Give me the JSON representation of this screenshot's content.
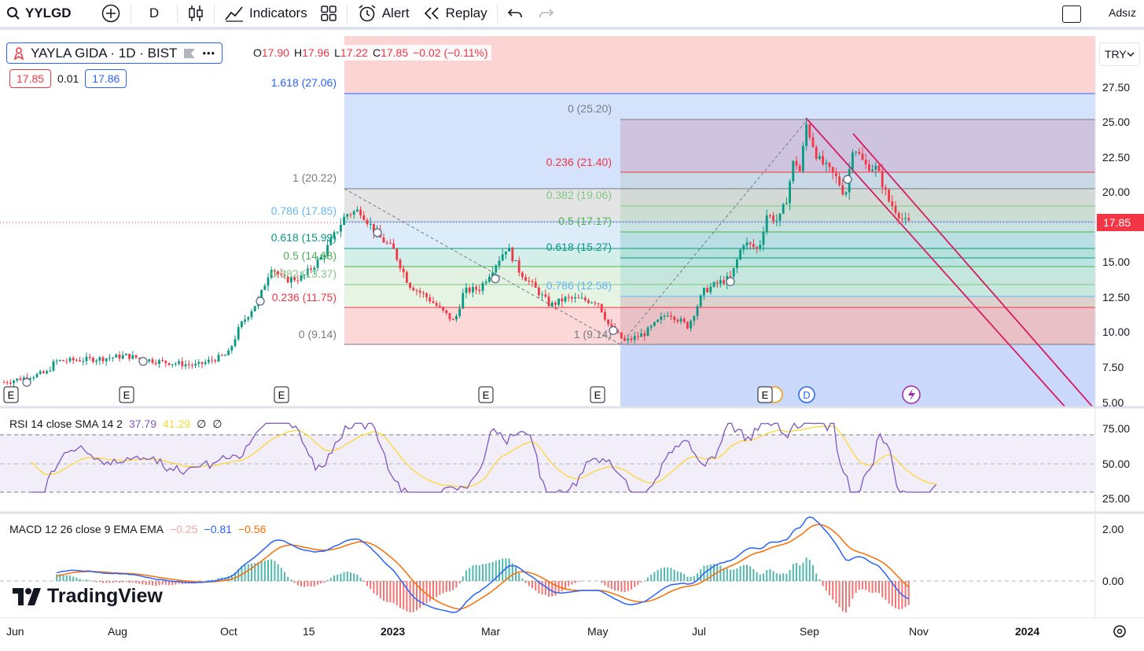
{
  "toolbar": {
    "symbol": "YYLGD",
    "interval": "D",
    "indicators_label": "Indicators",
    "alert_label": "Alert",
    "replay_label": "Replay",
    "user_label": "Adsız"
  },
  "legend": {
    "title": "YAYLA GIDA · 1D · BIST",
    "more": "•••",
    "o_label": "O",
    "o_val": "17.90",
    "h_label": "H",
    "h_val": "17.96",
    "l_label": "L",
    "l_val": "17.22",
    "c_label": "C",
    "c_val": "17.85",
    "change": "−0.02 (−0.11%)",
    "bid": "17.85",
    "spread": "0.01",
    "ask": "17.86"
  },
  "currency": "TRY",
  "price_axis": {
    "ticks": [
      "27.50",
      "25.00",
      "22.50",
      "20.00",
      "15.00",
      "12.50",
      "10.00",
      "7.50",
      "5.00"
    ],
    "last_price": "17.85"
  },
  "time_axis": [
    "Jun",
    "Aug",
    "Oct",
    "15",
    "2023",
    "Mar",
    "May",
    "Jul",
    "Sep",
    "Nov",
    "2024"
  ],
  "fib1": {
    "levels": [
      "1.618 (27.06)",
      "1 (20.22)",
      "0.786 (17.85)",
      "0.618 (15.99)",
      "0.5 (14.68)",
      "0.382 (13.37)",
      "0.236 (11.75)",
      "0 (9.14)"
    ]
  },
  "fib2": {
    "levels": [
      "0 (25.20)",
      "0.236 (21.40)",
      "0.382 (19.06)",
      "0.5 (17.17)",
      "0.618 (15.27)",
      "0.786 (12.58)",
      "1 (9.14)"
    ]
  },
  "events": [
    "E",
    "E",
    "E",
    "E",
    "E",
    "E",
    "D"
  ],
  "rsi": {
    "label": "RSI 14 close SMA 14 2",
    "v1": "37.79",
    "v2": "41.29",
    "v3": "∅",
    "v4": "∅",
    "ticks": [
      "75.00",
      "50.00",
      "25.00"
    ]
  },
  "macd": {
    "label": "MACD 12 26 close 9 EMA EMA",
    "hist": "−0.25",
    "macd": "−0.81",
    "signal": "−0.56",
    "ticks": [
      "2.00",
      "0.00"
    ]
  },
  "brand": "TradingView",
  "colors": {
    "up": "#089981",
    "down": "#f23645",
    "accent": "#2962ff"
  }
}
